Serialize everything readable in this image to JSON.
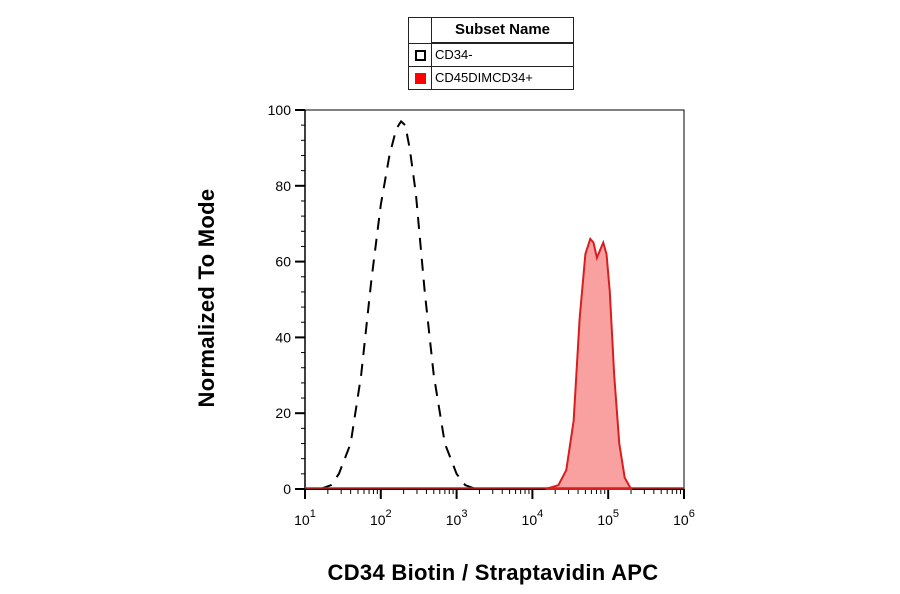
{
  "chart_data": {
    "type": "histogram",
    "xlabel": "CD34 Biotin / Straptavidin APC",
    "ylabel": "Normalized To Mode",
    "x_scale": "log",
    "xlim": [
      10,
      1000000
    ],
    "ylim": [
      0,
      100
    ],
    "y_ticks": [
      "0",
      "20",
      "40",
      "60",
      "80",
      "100"
    ],
    "x_ticks": [
      {
        "base": "10",
        "exp": "1",
        "value": 10
      },
      {
        "base": "10",
        "exp": "2",
        "value": 100
      },
      {
        "base": "10",
        "exp": "3",
        "value": 1000
      },
      {
        "base": "10",
        "exp": "4",
        "value": 10000
      },
      {
        "base": "10",
        "exp": "5",
        "value": 100000
      },
      {
        "base": "10",
        "exp": "6",
        "value": 1000000
      }
    ],
    "legend": {
      "title": "Subset Name",
      "position": "top-center",
      "entries": [
        {
          "label": "CD34-",
          "color": "#000000",
          "style": "hollow"
        },
        {
          "label": "CD45DIMCD34+",
          "color": "#ff0000",
          "style": "filled"
        }
      ]
    },
    "series": [
      {
        "name": "CD34-",
        "style": "dashed",
        "color": "#000000",
        "points": [
          [
            16,
            0
          ],
          [
            22,
            1
          ],
          [
            28,
            4
          ],
          [
            40,
            12
          ],
          [
            55,
            30
          ],
          [
            75,
            55
          ],
          [
            100,
            75
          ],
          [
            130,
            88
          ],
          [
            160,
            95
          ],
          [
            185,
            97
          ],
          [
            210,
            96
          ],
          [
            240,
            90
          ],
          [
            290,
            78
          ],
          [
            380,
            52
          ],
          [
            500,
            30
          ],
          [
            700,
            12
          ],
          [
            1000,
            4
          ],
          [
            1300,
            1
          ],
          [
            1800,
            0
          ]
        ]
      },
      {
        "name": "CD45DIMCD34+",
        "style": "filled",
        "color": "#d81e1e",
        "fill": "#f9a0a0",
        "points": [
          [
            15000,
            0
          ],
          [
            22000,
            1
          ],
          [
            28000,
            5
          ],
          [
            35000,
            18
          ],
          [
            42000,
            45
          ],
          [
            50000,
            62
          ],
          [
            58000,
            66
          ],
          [
            64000,
            65
          ],
          [
            71000,
            61
          ],
          [
            78000,
            63
          ],
          [
            86000,
            65
          ],
          [
            95000,
            62
          ],
          [
            105000,
            52
          ],
          [
            120000,
            30
          ],
          [
            140000,
            12
          ],
          [
            165000,
            3
          ],
          [
            200000,
            0
          ]
        ]
      }
    ]
  }
}
